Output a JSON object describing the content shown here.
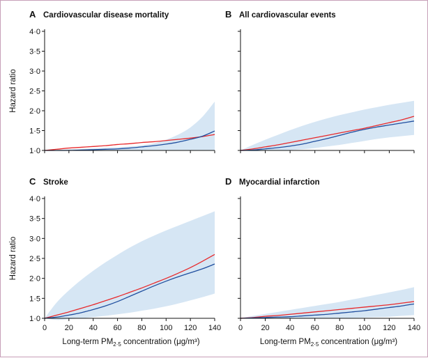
{
  "chart_data": [
    {
      "type": "line",
      "panel": "A",
      "title": "Cardiovascular disease mortality",
      "xlabel": "",
      "ylabel": "Hazard ratio",
      "xlim": [
        0,
        140
      ],
      "ylim": [
        1.0,
        4.0
      ],
      "xticks": [
        "0",
        "20",
        "40",
        "60",
        "80",
        "100",
        "120",
        "140"
      ],
      "yticks": [
        "1·0",
        "1·5",
        "2·0",
        "2·5",
        "3·0",
        "3·5",
        "4·0"
      ],
      "show_x_tick_labels": false,
      "show_y_tick_labels": true,
      "x": [
        0,
        10,
        20,
        30,
        40,
        50,
        60,
        70,
        80,
        90,
        100,
        110,
        120,
        130,
        140
      ],
      "series": [
        {
          "color": "#e8282a",
          "values": [
            1.0,
            1.03,
            1.06,
            1.08,
            1.1,
            1.12,
            1.15,
            1.17,
            1.2,
            1.22,
            1.25,
            1.28,
            1.31,
            1.35,
            1.4
          ]
        },
        {
          "color": "#1f4e9e",
          "values": [
            1.0,
            1.0,
            1.0,
            1.01,
            1.02,
            1.03,
            1.04,
            1.06,
            1.09,
            1.12,
            1.16,
            1.21,
            1.28,
            1.36,
            1.49
          ]
        }
      ],
      "ci_band": {
        "color": "#d6e6f4",
        "upper": [
          1.0,
          1.01,
          1.03,
          1.04,
          1.05,
          1.07,
          1.08,
          1.1,
          1.13,
          1.18,
          1.27,
          1.4,
          1.58,
          1.85,
          2.23
        ],
        "lower": [
          1.0,
          1.0,
          0.99,
          0.99,
          0.99,
          0.99,
          0.99,
          0.99,
          0.99,
          1.0,
          1.0,
          1.0,
          1.0,
          1.0,
          1.0
        ]
      }
    },
    {
      "type": "line",
      "panel": "B",
      "title": "All cardiovascular events",
      "xlabel": "",
      "ylabel": "",
      "xlim": [
        0,
        140
      ],
      "ylim": [
        1.0,
        4.0
      ],
      "xticks": [
        "0",
        "20",
        "40",
        "60",
        "80",
        "100",
        "120",
        "140"
      ],
      "yticks": [
        "1·0",
        "1·5",
        "2·0",
        "2·5",
        "3·0",
        "3·5",
        "4·0"
      ],
      "show_x_tick_labels": false,
      "show_y_tick_labels": false,
      "x": [
        0,
        10,
        20,
        30,
        40,
        50,
        60,
        70,
        80,
        90,
        100,
        110,
        120,
        130,
        140
      ],
      "series": [
        {
          "color": "#e8282a",
          "values": [
            1.0,
            1.04,
            1.09,
            1.14,
            1.2,
            1.26,
            1.32,
            1.38,
            1.44,
            1.5,
            1.56,
            1.63,
            1.7,
            1.77,
            1.86
          ]
        },
        {
          "color": "#1f4e9e",
          "values": [
            1.0,
            1.01,
            1.04,
            1.07,
            1.11,
            1.16,
            1.23,
            1.3,
            1.38,
            1.46,
            1.53,
            1.59,
            1.64,
            1.69,
            1.74
          ]
        }
      ],
      "ci_band": {
        "color": "#d6e6f4",
        "upper": [
          1.0,
          1.14,
          1.27,
          1.39,
          1.51,
          1.62,
          1.72,
          1.81,
          1.89,
          1.96,
          2.03,
          2.09,
          2.15,
          2.2,
          2.25
        ],
        "lower": [
          1.0,
          0.98,
          0.99,
          1.0,
          1.01,
          1.03,
          1.06,
          1.1,
          1.14,
          1.19,
          1.24,
          1.29,
          1.33,
          1.36,
          1.39
        ]
      }
    },
    {
      "type": "line",
      "panel": "C",
      "title": "Stroke",
      "xlabel": "Long-term PM2·5 concentration (μg/m³)",
      "ylabel": "Hazard ratio",
      "xlim": [
        0,
        140
      ],
      "ylim": [
        1.0,
        4.0
      ],
      "xticks": [
        "0",
        "20",
        "40",
        "60",
        "80",
        "100",
        "120",
        "140"
      ],
      "yticks": [
        "1·0",
        "1·5",
        "2·0",
        "2·5",
        "3·0",
        "3·5",
        "4·0"
      ],
      "show_x_tick_labels": true,
      "show_y_tick_labels": true,
      "x": [
        0,
        10,
        20,
        30,
        40,
        50,
        60,
        70,
        80,
        90,
        100,
        110,
        120,
        130,
        140
      ],
      "series": [
        {
          "color": "#e8282a",
          "values": [
            1.0,
            1.08,
            1.16,
            1.25,
            1.34,
            1.44,
            1.54,
            1.65,
            1.76,
            1.88,
            2.0,
            2.13,
            2.27,
            2.43,
            2.6
          ]
        },
        {
          "color": "#1f4e9e",
          "values": [
            1.0,
            1.03,
            1.08,
            1.14,
            1.22,
            1.31,
            1.42,
            1.55,
            1.68,
            1.81,
            1.93,
            2.04,
            2.14,
            2.24,
            2.36
          ]
        }
      ],
      "ci_band": {
        "color": "#d6e6f4",
        "upper": [
          1.0,
          1.4,
          1.7,
          1.96,
          2.19,
          2.4,
          2.59,
          2.77,
          2.93,
          3.07,
          3.2,
          3.32,
          3.44,
          3.56,
          3.68
        ],
        "lower": [
          1.0,
          0.96,
          0.98,
          1.0,
          1.03,
          1.06,
          1.1,
          1.14,
          1.19,
          1.24,
          1.3,
          1.37,
          1.45,
          1.53,
          1.62
        ]
      }
    },
    {
      "type": "line",
      "panel": "D",
      "title": "Myocardial infarction",
      "xlabel": "Long-term PM2·5 concentration (μg/m³)",
      "ylabel": "",
      "xlim": [
        0,
        140
      ],
      "ylim": [
        1.0,
        4.0
      ],
      "xticks": [
        "0",
        "20",
        "40",
        "60",
        "80",
        "100",
        "120",
        "140"
      ],
      "yticks": [
        "1·0",
        "1·5",
        "2·0",
        "2·5",
        "3·0",
        "3·5",
        "4·0"
      ],
      "show_x_tick_labels": true,
      "show_y_tick_labels": false,
      "x": [
        0,
        10,
        20,
        30,
        40,
        50,
        60,
        70,
        80,
        90,
        100,
        110,
        120,
        130,
        140
      ],
      "series": [
        {
          "color": "#e8282a",
          "values": [
            1.0,
            1.02,
            1.05,
            1.07,
            1.1,
            1.13,
            1.16,
            1.19,
            1.22,
            1.25,
            1.28,
            1.31,
            1.34,
            1.38,
            1.42
          ]
        },
        {
          "color": "#1f4e9e",
          "values": [
            1.0,
            1.01,
            1.02,
            1.03,
            1.04,
            1.06,
            1.08,
            1.1,
            1.13,
            1.16,
            1.19,
            1.23,
            1.27,
            1.31,
            1.36
          ]
        }
      ],
      "ci_band": {
        "color": "#d6e6f4",
        "upper": [
          1.0,
          1.06,
          1.11,
          1.16,
          1.21,
          1.26,
          1.31,
          1.36,
          1.41,
          1.47,
          1.53,
          1.59,
          1.65,
          1.71,
          1.78
        ],
        "lower": [
          1.0,
          0.99,
          0.99,
          0.99,
          0.99,
          0.99,
          0.99,
          1.0,
          1.0,
          1.01,
          1.02,
          1.03,
          1.04,
          1.06,
          1.08
        ]
      }
    }
  ]
}
